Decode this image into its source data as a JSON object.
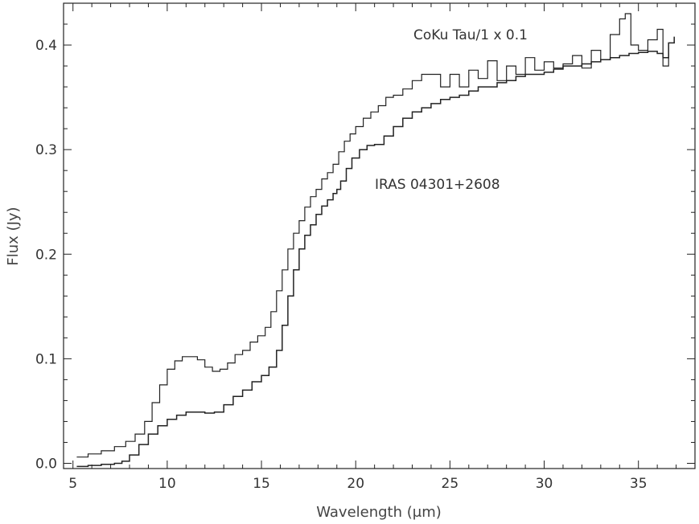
{
  "chart_data": {
    "type": "line",
    "title": "",
    "xlabel": "Wavelength (μm)",
    "ylabel": "Flux (Jy)",
    "xlim": [
      4.5,
      38.0
    ],
    "ylim": [
      -0.005,
      0.44
    ],
    "x_ticks": [
      5,
      10,
      15,
      20,
      25,
      30,
      35
    ],
    "x_tick_labels": [
      "5",
      "10",
      "15",
      "20",
      "25",
      "30",
      "35"
    ],
    "y_ticks": [
      0.0,
      0.1,
      0.2,
      0.3,
      0.4
    ],
    "y_tick_labels": [
      "0.0",
      "0.1",
      "0.2",
      "0.3",
      "0.4"
    ],
    "grid": false,
    "legend": "none",
    "line_style": "steps",
    "color": "#222222",
    "annotations": [
      {
        "text": "CoKu Tau/1 x 0.1",
        "series": 0
      },
      {
        "text": "IRAS 04301+2608",
        "series": 1
      }
    ],
    "series": [
      {
        "x": [
          5.2,
          5.8,
          6.5,
          7.2,
          7.8,
          8.3,
          8.8,
          9.2,
          9.6,
          10.0,
          10.4,
          10.8,
          11.2,
          11.6,
          12.0,
          12.4,
          12.8,
          13.2,
          13.6,
          14.0,
          14.4,
          14.8,
          15.2,
          15.5,
          15.8,
          16.1,
          16.4,
          16.7,
          17.0,
          17.3,
          17.6,
          17.9,
          18.2,
          18.5,
          18.8,
          19.1,
          19.4,
          19.7,
          20.0,
          20.4,
          20.8,
          21.2,
          21.6,
          22.0,
          22.5,
          23.0,
          23.5,
          24.0,
          24.5,
          25.0,
          25.5,
          26.0,
          26.5,
          27.0,
          27.5,
          28.0,
          28.5,
          29.0,
          29.5,
          30.0,
          30.5,
          31.0,
          31.5,
          32.0,
          32.5,
          33.0,
          33.5,
          34.0,
          34.3,
          34.6,
          35.0,
          35.5,
          36.0,
          36.3,
          36.6
        ],
        "y": [
          0.006,
          0.009,
          0.012,
          0.016,
          0.021,
          0.028,
          0.04,
          0.058,
          0.075,
          0.09,
          0.098,
          0.102,
          0.102,
          0.099,
          0.092,
          0.088,
          0.09,
          0.096,
          0.104,
          0.108,
          0.116,
          0.122,
          0.13,
          0.145,
          0.165,
          0.185,
          0.205,
          0.22,
          0.232,
          0.245,
          0.255,
          0.262,
          0.272,
          0.278,
          0.286,
          0.298,
          0.308,
          0.315,
          0.322,
          0.33,
          0.336,
          0.342,
          0.35,
          0.352,
          0.358,
          0.366,
          0.372,
          0.372,
          0.36,
          0.372,
          0.36,
          0.376,
          0.368,
          0.385,
          0.366,
          0.38,
          0.372,
          0.388,
          0.376,
          0.384,
          0.378,
          0.382,
          0.39,
          0.378,
          0.395,
          0.386,
          0.41,
          0.425,
          0.43,
          0.4,
          0.395,
          0.405,
          0.415,
          0.38,
          0.392
        ]
      },
      {
        "x": [
          5.2,
          5.8,
          6.5,
          7.2,
          7.6,
          8.0,
          8.5,
          9.0,
          9.5,
          10.0,
          10.5,
          11.0,
          11.5,
          12.0,
          12.5,
          13.0,
          13.5,
          14.0,
          14.5,
          15.0,
          15.4,
          15.8,
          16.1,
          16.4,
          16.7,
          17.0,
          17.3,
          17.6,
          17.9,
          18.2,
          18.5,
          18.8,
          19.0,
          19.2,
          19.5,
          19.8,
          20.2,
          20.6,
          21.0,
          21.5,
          22.0,
          22.5,
          23.0,
          23.5,
          24.0,
          24.5,
          25.0,
          25.5,
          26.0,
          26.5,
          27.0,
          27.5,
          28.0,
          28.5,
          29.0,
          29.5,
          30.0,
          30.5,
          31.0,
          31.5,
          32.0,
          32.5,
          33.0,
          33.5,
          34.0,
          34.5,
          35.0,
          35.5,
          36.0,
          36.3,
          36.6,
          36.9
        ],
        "y": [
          -0.003,
          -0.002,
          -0.001,
          0.0,
          0.002,
          0.008,
          0.018,
          0.028,
          0.036,
          0.042,
          0.046,
          0.049,
          0.049,
          0.048,
          0.049,
          0.056,
          0.064,
          0.07,
          0.078,
          0.084,
          0.092,
          0.108,
          0.132,
          0.16,
          0.185,
          0.205,
          0.218,
          0.228,
          0.238,
          0.246,
          0.252,
          0.258,
          0.262,
          0.27,
          0.282,
          0.292,
          0.3,
          0.304,
          0.305,
          0.313,
          0.322,
          0.33,
          0.336,
          0.34,
          0.344,
          0.348,
          0.35,
          0.352,
          0.356,
          0.36,
          0.36,
          0.364,
          0.366,
          0.37,
          0.372,
          0.372,
          0.374,
          0.377,
          0.38,
          0.38,
          0.382,
          0.384,
          0.386,
          0.388,
          0.39,
          0.392,
          0.393,
          0.394,
          0.392,
          0.388,
          0.402,
          0.408
        ]
      }
    ]
  }
}
